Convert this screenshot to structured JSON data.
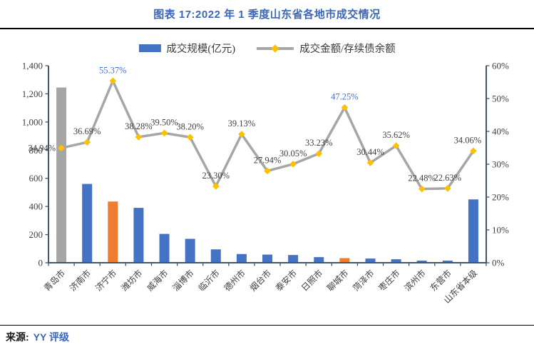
{
  "header": {
    "title": "图表 17:2022 年 1 季度山东省各地市成交情况"
  },
  "footer": {
    "source_label": "来源:",
    "source_value": "YY 评级"
  },
  "colors": {
    "title_blue": "#3A67B8",
    "bar_blue": "#4472C4",
    "bar_orange": "#ED7D31",
    "bar_gray": "#A6A6A6",
    "line_gray": "#A6A6A6",
    "marker_gold": "#FFC000",
    "axis": "#44546A",
    "label_dark": "#404040",
    "highlight_label_blue": "#4472C4"
  },
  "chart_data": {
    "type": "bar+line",
    "title": "图表 17:2022 年 1 季度山东省各地市成交情况",
    "legend_position": "top-center",
    "gridlines": false,
    "legend": [
      {
        "label": "成交规模(亿元)",
        "swatch": "bar",
        "color": "#4472C4"
      },
      {
        "label": "成交金额/存续债余额",
        "swatch": "line",
        "color": "#A6A6A6",
        "marker_color": "#FFC000"
      }
    ],
    "categories": [
      "青岛市",
      "济南市",
      "济宁市",
      "潍坊市",
      "威海市",
      "淄博市",
      "临沂市",
      "德州市",
      "烟台市",
      "泰安市",
      "日照市",
      "聊城市",
      "菏泽市",
      "枣庄市",
      "滨州市",
      "东营市",
      "山东省本级"
    ],
    "series": [
      {
        "name": "成交规模(亿元)",
        "type": "bar",
        "axis": "left",
        "values": [
          1245,
          560,
          435,
          390,
          205,
          170,
          95,
          62,
          58,
          55,
          40,
          33,
          30,
          25,
          15,
          15,
          450
        ],
        "colors": [
          "#A6A6A6",
          "#4472C4",
          "#ED7D31",
          "#4472C4",
          "#4472C4",
          "#4472C4",
          "#4472C4",
          "#4472C4",
          "#4472C4",
          "#4472C4",
          "#4472C4",
          "#ED7D31",
          "#4472C4",
          "#4472C4",
          "#4472C4",
          "#4472C4",
          "#4472C4"
        ]
      },
      {
        "name": "成交金额/存续债余额",
        "type": "line",
        "axis": "right",
        "values": [
          34.94,
          36.69,
          55.37,
          38.28,
          39.5,
          38.2,
          23.3,
          39.13,
          27.94,
          30.05,
          33.23,
          47.25,
          30.44,
          35.62,
          22.48,
          22.63,
          34.06
        ],
        "point_labels": [
          "34.94%",
          "36.69%",
          "55.37%",
          "38.28%",
          "39.50%",
          "38.20%",
          "23.30%",
          "39.13%",
          "27.94%",
          "30.05%",
          "33.23%",
          "47.25%",
          "30.44%",
          "35.62%",
          "22.48%",
          "22.63%",
          "34.06%"
        ],
        "highlighted_label_indices": [
          2,
          11
        ]
      }
    ],
    "left_axis": {
      "min": 0,
      "max": 1400,
      "step": 200,
      "tick_labels": [
        "0",
        "200",
        "400",
        "600",
        "800",
        "1,000",
        "1,200",
        "1,400"
      ]
    },
    "right_axis": {
      "min": 0,
      "max": 60,
      "step": 10,
      "tick_labels": [
        "0%",
        "10%",
        "20%",
        "30%",
        "40%",
        "50%",
        "60%"
      ]
    }
  }
}
